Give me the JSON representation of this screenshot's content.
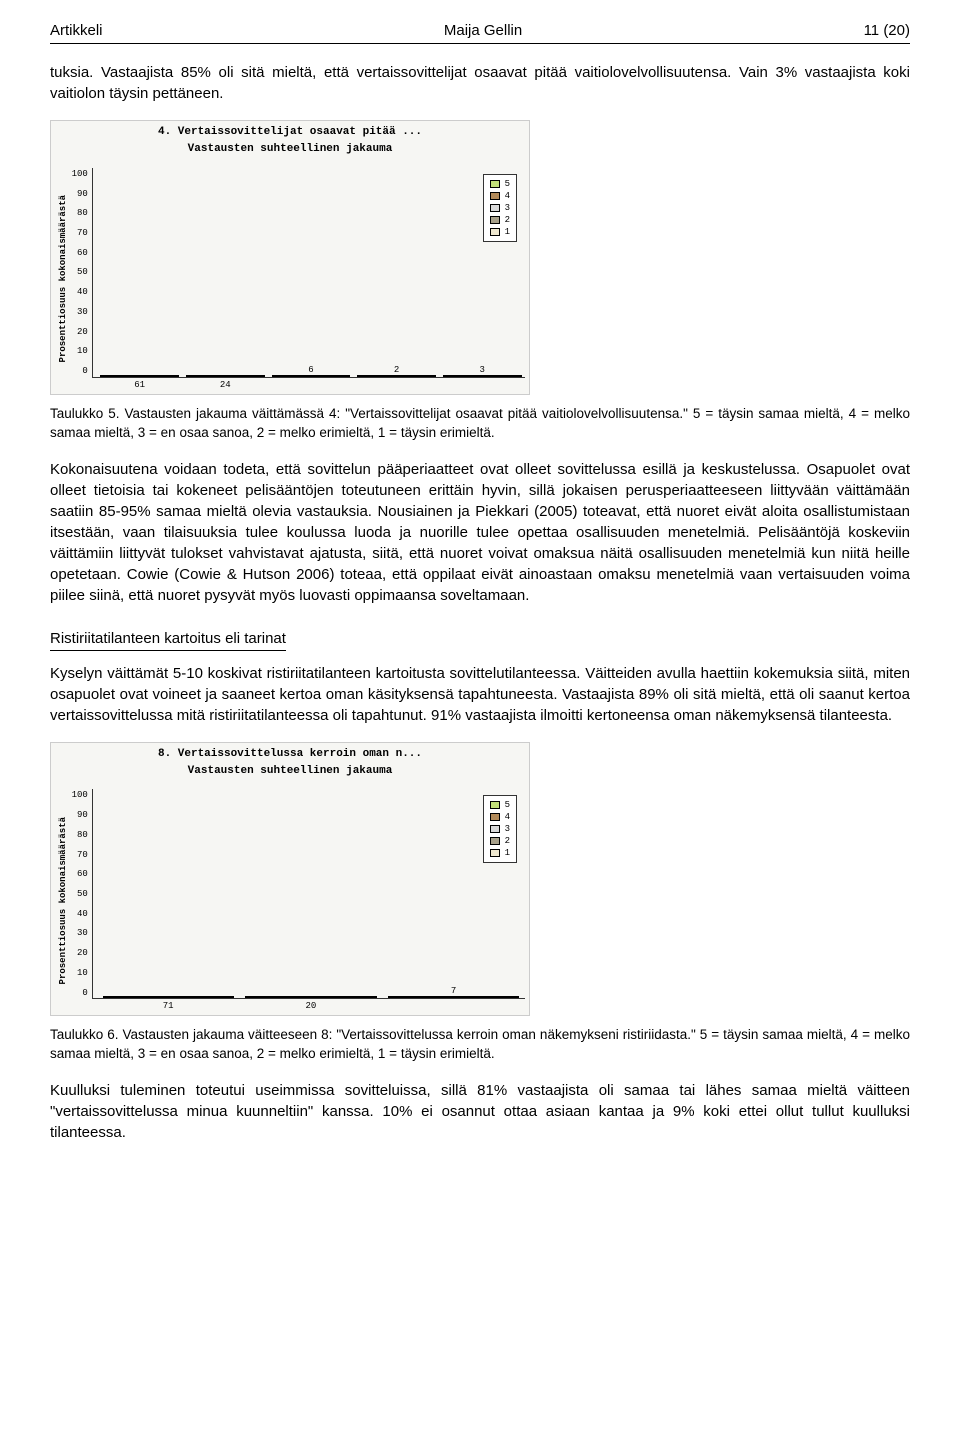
{
  "header": {
    "left": "Artikkeli",
    "center": "Maija Gellin",
    "right": "11 (20)"
  },
  "intro": "tuksia. Vastaajista 85% oli sitä mieltä, että vertaissovittelijat osaavat pitää vaitiolovelvollisuutensa. Vain 3% vastaajista koki vaitiolon täysin pettäneen.",
  "chart1": {
    "type": "bar",
    "title_line1": "4. Vertaissovittelijat osaavat pitää ...",
    "title_line2": "Vastausten suhteellinen jakauma",
    "ylabel": "Prosenttiosuus kokonaismäärästä",
    "ylim": [
      0,
      100
    ],
    "ytick_step": 10,
    "bars": [
      {
        "value": 61,
        "color": "#c3e07a"
      },
      {
        "value": 24,
        "color": "#b38b5a"
      },
      {
        "value": 6,
        "color": "#d9d9d9"
      },
      {
        "value": 2,
        "color": "#a7a08a"
      },
      {
        "value": 3,
        "color": "#efe8d0"
      }
    ],
    "legend": [
      {
        "label": "5",
        "color": "#c3e07a"
      },
      {
        "label": "4",
        "color": "#b38b5a"
      },
      {
        "label": "3",
        "color": "#d9d9d9"
      },
      {
        "label": "2",
        "color": "#a7a08a"
      },
      {
        "label": "1",
        "color": "#efe8d0"
      }
    ],
    "background": "#f6f6f3"
  },
  "caption1": "Taulukko 5. Vastausten jakauma väittämässä 4: \"Vertaissovittelijat osaavat pitää vaitiolovelvollisuutensa.\" 5 = täysin samaa mieltä, 4 = melko samaa mieltä, 3 = en osaa sanoa, 2 = melko erimieltä, 1 = täysin erimieltä.",
  "body1": "Kokonaisuutena voidaan todeta, että sovittelun pääperiaatteet ovat olleet sovittelussa esillä ja keskustelussa. Osapuolet ovat olleet tietoisia tai kokeneet pelisääntöjen toteutuneen erittäin hyvin, sillä jokaisen perusperiaatteeseen liittyvään väittämään saatiin 85-95% samaa mieltä olevia vastauksia. Nousiainen ja Piekkari (2005) toteavat, että nuoret eivät aloita osallistumistaan itsestään, vaan tilaisuuksia tulee koulussa luoda ja nuorille tulee opettaa osallisuuden menetelmiä. Pelisääntöjä koskeviin väittämiin liittyvät tulokset vahvistavat ajatusta, siitä, että nuoret voivat omaksua näitä osallisuuden menetelmiä kun niitä heille opetetaan. Cowie (Cowie & Hutson 2006) toteaa, että oppilaat eivät ainoastaan omaksu menetelmiä vaan vertaisuuden voima piilee siinä, että nuoret pysyvät myös luovasti oppimaansa soveltamaan.",
  "subhead": "Ristiriitatilanteen kartoitus eli tarinat",
  "body2": "Kyselyn väittämät 5-10 koskivat ristiriitatilanteen kartoitusta sovittelutilanteessa. Väitteiden avulla haettiin kokemuksia siitä, miten osapuolet ovat voineet ja saaneet kertoa oman käsityksensä tapahtuneesta. Vastaajista 89% oli sitä mieltä, että oli saanut kertoa vertaissovittelussa mitä ristiriitatilanteessa oli tapahtunut. 91% vastaajista ilmoitti kertoneensa oman näkemyksensä tilanteesta.",
  "chart2": {
    "type": "bar",
    "title_line1": "8. Vertaissovittelussa kerroin oman n...",
    "title_line2": "Vastausten suhteellinen jakauma",
    "ylabel": "Prosenttiosuus kokonaismäärästä",
    "ylim": [
      0,
      100
    ],
    "ytick_step": 10,
    "bars": [
      {
        "value": 71,
        "color": "#c3e07a"
      },
      {
        "value": 20,
        "color": "#b38b5a"
      },
      {
        "value": 7,
        "color": "#d9d9d9"
      }
    ],
    "legend": [
      {
        "label": "5",
        "color": "#c3e07a"
      },
      {
        "label": "4",
        "color": "#b38b5a"
      },
      {
        "label": "3",
        "color": "#d9d9d9"
      },
      {
        "label": "2",
        "color": "#a7a08a"
      },
      {
        "label": "1",
        "color": "#efe8d0"
      }
    ],
    "background": "#f6f6f3"
  },
  "caption2": "Taulukko 6. Vastausten jakauma väitteeseen 8: \"Vertaissovittelussa kerroin oman näkemykseni ristiriidasta.\" 5 = täysin samaa mieltä, 4 = melko samaa mieltä, 3 = en osaa sanoa, 2 = melko erimieltä, 1 = täysin erimieltä.",
  "body3": "Kuulluksi tuleminen toteutui useimmissa sovitteluissa, sillä 81% vastaajista oli samaa tai lähes samaa mieltä väitteen \"vertaissovittelussa minua kuunneltiin\" kanssa. 10% ei osannut ottaa asiaan kantaa ja 9% koki ettei ollut tullut kuulluksi tilanteessa."
}
